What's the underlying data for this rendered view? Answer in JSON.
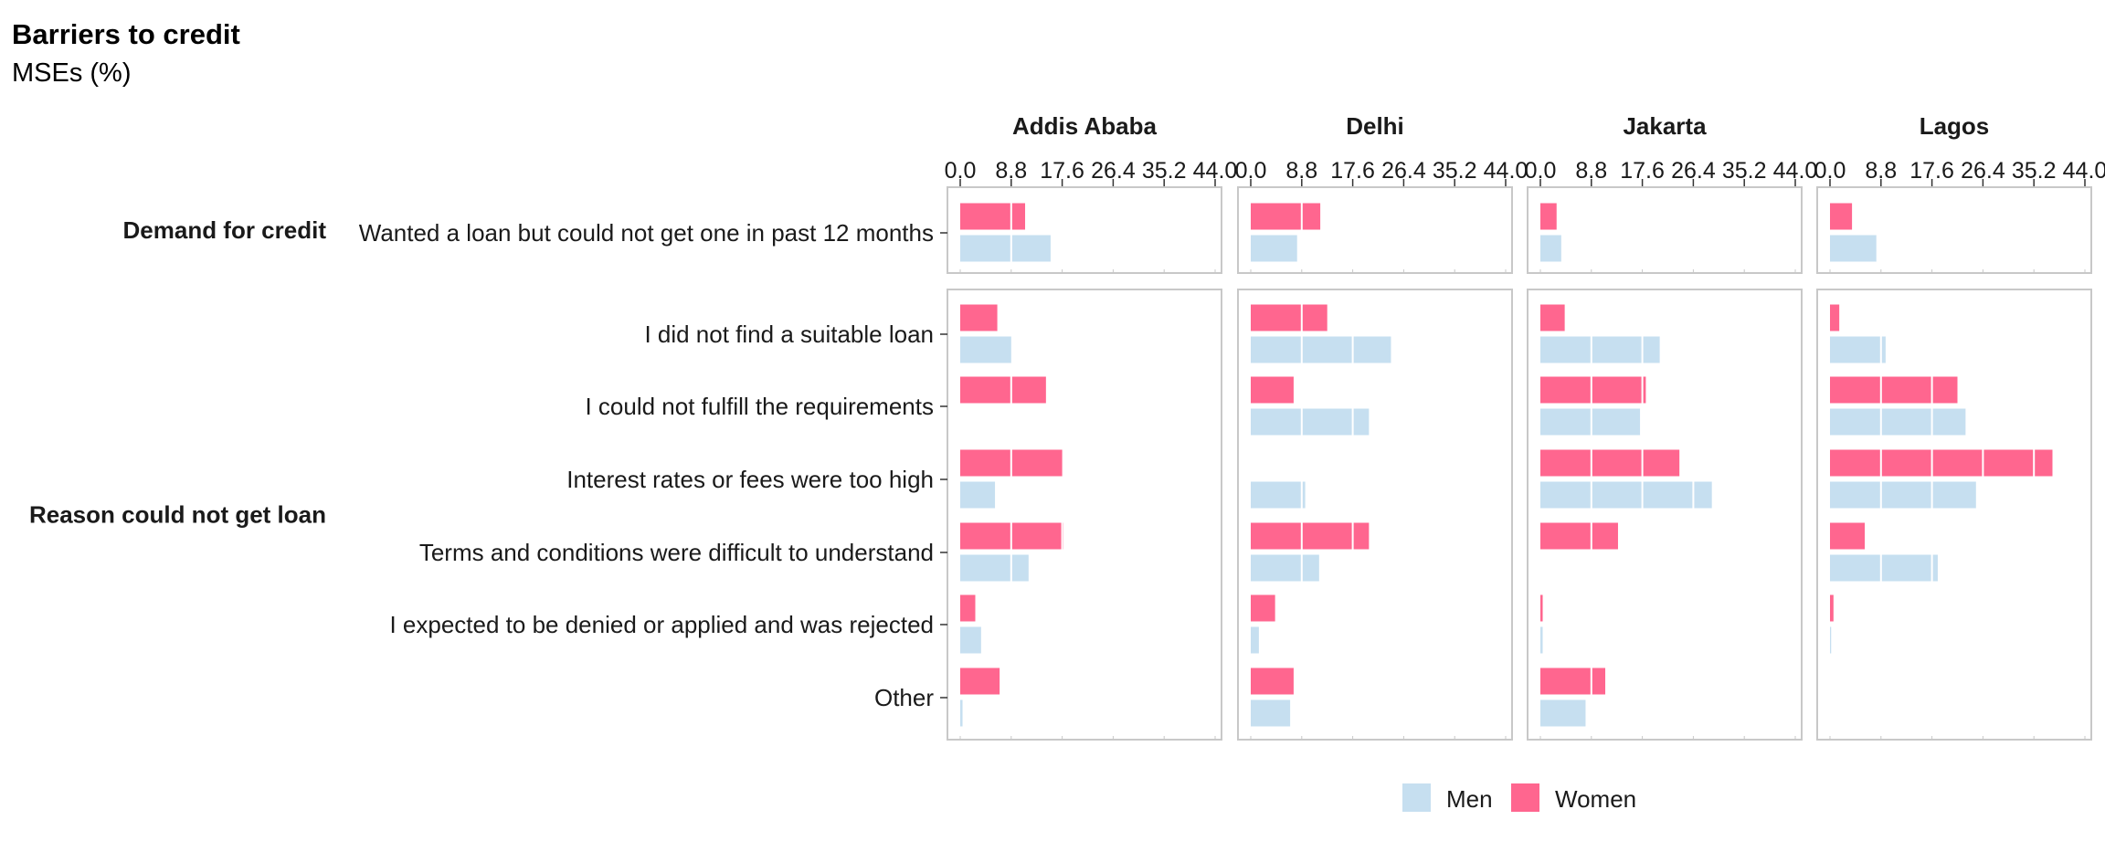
{
  "title": "Barriers to credit",
  "subtitle": "MSEs (%)",
  "chart_data": {
    "type": "bar",
    "orientation": "horizontal",
    "facets": [
      "Addis Ababa",
      "Delhi",
      "Jakarta",
      "Lagos"
    ],
    "xlim": [
      0,
      44
    ],
    "xticks": [
      "0.0",
      "8.8",
      "17.6",
      "26.4",
      "35.2",
      "44.0"
    ],
    "grid": true,
    "legend_position": "bottom",
    "series": [
      {
        "name": "Men",
        "color": "#c6dff0"
      },
      {
        "name": "Women",
        "color": "#ff668f"
      }
    ],
    "groups": [
      {
        "label": "Demand for credit",
        "rows": [
          {
            "label": "Wanted a loan but could not get one in past 12 months",
            "values": {
              "Addis Ababa": {
                "Women": 11.2,
                "Men": 15.6
              },
              "Delhi": {
                "Women": 12.0,
                "Men": 8.0
              },
              "Jakarta": {
                "Women": 2.8,
                "Men": 3.6
              },
              "Lagos": {
                "Women": 3.8,
                "Men": 8.0
              }
            }
          }
        ]
      },
      {
        "label": "Reason could not get loan",
        "rows": [
          {
            "label": "I did not find a suitable loan",
            "values": {
              "Addis Ababa": {
                "Women": 6.4,
                "Men": 8.8
              },
              "Delhi": {
                "Women": 13.2,
                "Men": 24.2
              },
              "Jakarta": {
                "Women": 4.2,
                "Men": 20.6
              },
              "Lagos": {
                "Women": 1.6,
                "Men": 9.6
              }
            }
          },
          {
            "label": "I could not fulfill the requirements",
            "values": {
              "Addis Ababa": {
                "Women": 14.8,
                "Men": 0
              },
              "Delhi": {
                "Women": 7.4,
                "Men": 20.4
              },
              "Jakarta": {
                "Women": 18.2,
                "Men": 17.2
              },
              "Lagos": {
                "Women": 22.0,
                "Men": 23.4
              }
            }
          },
          {
            "label": "Interest rates or fees were too high",
            "values": {
              "Addis Ababa": {
                "Women": 17.6,
                "Men": 6.0
              },
              "Delhi": {
                "Women": 0,
                "Men": 9.4
              },
              "Jakarta": {
                "Women": 24.0,
                "Men": 29.6
              },
              "Lagos": {
                "Women": 38.4,
                "Men": 25.2
              }
            }
          },
          {
            "label": "Terms and conditions were difficult to understand",
            "values": {
              "Addis Ababa": {
                "Women": 17.8,
                "Men": 11.8
              },
              "Delhi": {
                "Women": 20.4,
                "Men": 11.8
              },
              "Jakarta": {
                "Women": 13.4,
                "Men": 0
              },
              "Lagos": {
                "Women": 6.0,
                "Men": 18.6
              }
            }
          },
          {
            "label": "I expected to be denied or applied and was rejected",
            "values": {
              "Addis Ababa": {
                "Women": 2.6,
                "Men": 3.6
              },
              "Delhi": {
                "Women": 4.2,
                "Men": 1.4
              },
              "Jakarta": {
                "Women": 0.4,
                "Men": 0.4
              },
              "Lagos": {
                "Women": 0.6,
                "Men": 0.2
              }
            }
          },
          {
            "label": "Other",
            "values": {
              "Addis Ababa": {
                "Women": 6.8,
                "Men": 0.4
              },
              "Delhi": {
                "Women": 7.4,
                "Men": 6.8
              },
              "Jakarta": {
                "Women": 11.2,
                "Men": 7.8
              },
              "Lagos": {
                "Women": 0,
                "Men": 0
              }
            }
          }
        ]
      }
    ]
  }
}
